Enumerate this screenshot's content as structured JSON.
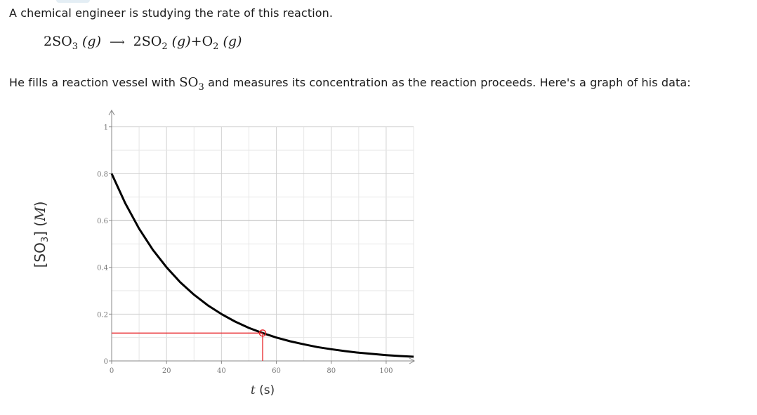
{
  "intro_text": "A chemical engineer is studying the rate of this reaction.",
  "reaction": {
    "reactant_coef": "2",
    "reactant": "SO",
    "reactant_sub": "3",
    "product1_coef": "2",
    "product1": "SO",
    "product1_sub": "2",
    "product2": "O",
    "product2_sub": "2",
    "state": "(g)",
    "plus": "+"
  },
  "description": {
    "before": "He fills a reaction vessel with ",
    "formula": "SO",
    "formula_sub": "3",
    "after": " and measures its concentration as the reaction proceeds. Here's a graph of his data:"
  },
  "chart_data": {
    "type": "line",
    "xlabel_var": "t",
    "xlabel_unit": "(s)",
    "ylabel_species": "SO",
    "ylabel_sub": "3",
    "ylabel_unit": "M",
    "xlim": [
      0,
      110
    ],
    "ylim": [
      0,
      1.05
    ],
    "x_ticks": [
      0,
      20,
      40,
      60,
      80,
      100
    ],
    "y_ticks": [
      0,
      0.2,
      0.4,
      0.6,
      0.8,
      1
    ],
    "y_tick_labels": [
      "0",
      "0.2",
      "0.4",
      "0.6",
      "0.8",
      "1"
    ],
    "grid": true,
    "series": [
      {
        "x": [
          0,
          5,
          10,
          15,
          20,
          25,
          30,
          35,
          40,
          45,
          50,
          55,
          60,
          65,
          70,
          75,
          80,
          85,
          90,
          95,
          100,
          105,
          110
        ],
        "y": [
          0.8,
          0.673,
          0.565,
          0.475,
          0.4,
          0.336,
          0.283,
          0.238,
          0.2,
          0.168,
          0.141,
          0.119,
          0.1,
          0.084,
          0.071,
          0.059,
          0.05,
          0.042,
          0.035,
          0.03,
          0.025,
          0.021,
          0.018
        ]
      }
    ],
    "marker": {
      "x": 55,
      "y": 0.119
    },
    "colors": {
      "curve": "#000000",
      "marker": "#e8252a",
      "grid": "#dddddd"
    }
  }
}
